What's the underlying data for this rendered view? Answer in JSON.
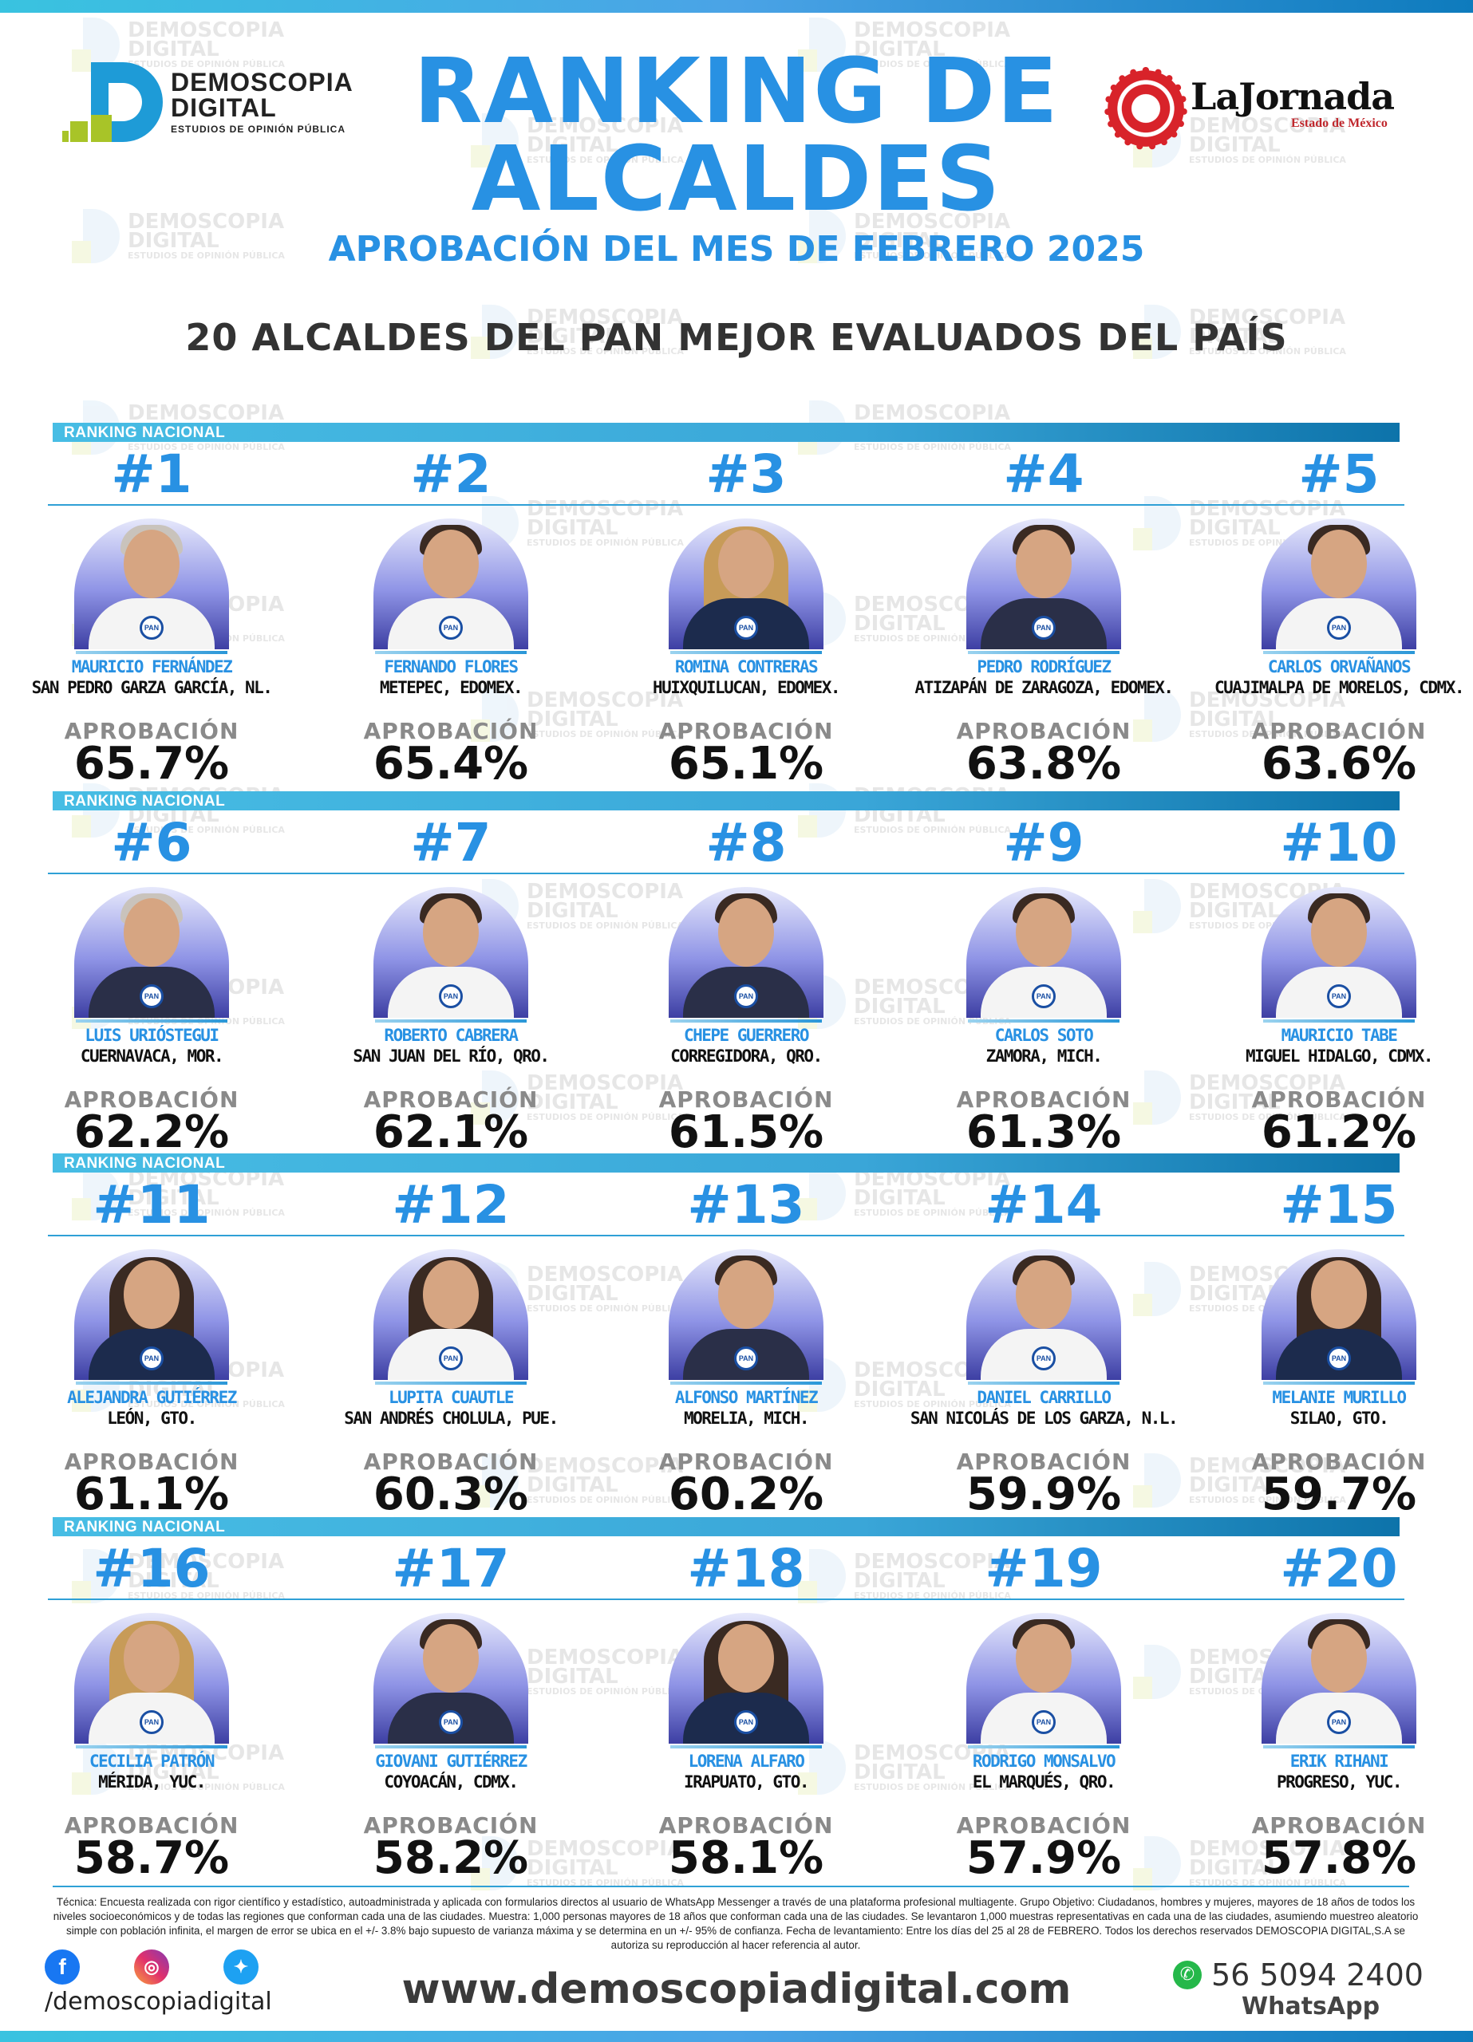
{
  "header": {
    "logo_left_name": "DEMOSCOPIA",
    "logo_left_name2": "DIGITAL",
    "logo_left_sub": "ESTUDIOS DE OPINIÓN PÚBLICA",
    "title_line1": "RANKING DE",
    "title_line2": "ALCALDES",
    "subtitle": "APROBACIÓN DEL MES DE FEBRERO 2025",
    "heading": "20 ALCALDES DEL PAN MEJOR EVALUADOS DEL PAÍS",
    "logo_right_name": "LaJornada",
    "logo_right_sub": "Estado de México"
  },
  "watermark": {
    "line1": "DEMOSCOPIA",
    "line2": "DIGITAL",
    "line3": "ESTUDIOS DE OPINIÓN PÚBLICA"
  },
  "ranking_label": "RANKING NACIONAL",
  "approval_label": "APROBACIÓN",
  "party_badge": "PAN",
  "mayors": [
    {
      "rank": "#1",
      "name": "MAURICIO FERNÁNDEZ",
      "city": "SAN PEDRO GARZA GARCÍA, NL.",
      "approval": "65.7%"
    },
    {
      "rank": "#2",
      "name": "FERNANDO FLORES",
      "city": "METEPEC, EDOMEX.",
      "approval": "65.4%"
    },
    {
      "rank": "#3",
      "name": "ROMINA CONTRERAS",
      "city": "HUIXQUILUCAN, EDOMEX.",
      "approval": "65.1%"
    },
    {
      "rank": "#4",
      "name": "PEDRO RODRÍGUEZ",
      "city": "ATIZAPÁN DE ZARAGOZA, EDOMEX.",
      "approval": "63.8%"
    },
    {
      "rank": "#5",
      "name": "CARLOS ORVAÑANOS",
      "city": "CUAJIMALPA DE MORELOS, CDMX.",
      "approval": "63.6%"
    },
    {
      "rank": "#6",
      "name": "LUIS URIÓSTEGUI",
      "city": "CUERNAVACA, MOR.",
      "approval": "62.2%"
    },
    {
      "rank": "#7",
      "name": "ROBERTO CABRERA",
      "city": "SAN JUAN DEL RÍO, QRO.",
      "approval": "62.1%"
    },
    {
      "rank": "#8",
      "name": "CHEPE GUERRERO",
      "city": "CORREGIDORA, QRO.",
      "approval": "61.5%"
    },
    {
      "rank": "#9",
      "name": "CARLOS SOTO",
      "city": "ZAMORA, MICH.",
      "approval": "61.3%"
    },
    {
      "rank": "#10",
      "name": "MAURICIO TABE",
      "city": "MIGUEL HIDALGO, CDMX.",
      "approval": "61.2%"
    },
    {
      "rank": "#11",
      "name": "ALEJANDRA GUTIÉRREZ",
      "city": "LEÓN, GTO.",
      "approval": "61.1%"
    },
    {
      "rank": "#12",
      "name": "LUPITA CUAUTLE",
      "city": "SAN ANDRÉS CHOLULA, PUE.",
      "approval": "60.3%"
    },
    {
      "rank": "#13",
      "name": "ALFONSO MARTÍNEZ",
      "city": "MORELIA, MICH.",
      "approval": "60.2%"
    },
    {
      "rank": "#14",
      "name": "DANIEL CARRILLO",
      "city": "SAN NICOLÁS DE LOS GARZA, N.L.",
      "approval": "59.9%"
    },
    {
      "rank": "#15",
      "name": "MELANIE MURILLO",
      "city": "SILAO, GTO.",
      "approval": "59.7%"
    },
    {
      "rank": "#16",
      "name": "CECILIA PATRÓN",
      "city": "MÉRIDA, YUC.",
      "approval": "58.7%"
    },
    {
      "rank": "#17",
      "name": "GIOVANI GUTIÉRREZ",
      "city": "COYOACÁN, CDMX.",
      "approval": "58.2%"
    },
    {
      "rank": "#18",
      "name": "LORENA ALFARO",
      "city": "IRAPUATO, GTO.",
      "approval": "58.1%"
    },
    {
      "rank": "#19",
      "name": "RODRIGO MONSALVO",
      "city": "EL MARQUÉS, QRO.",
      "approval": "57.9%"
    },
    {
      "rank": "#20",
      "name": "ERIK RIHANI",
      "city": "PROGRESO, YUC.",
      "approval": "57.8%"
    }
  ],
  "footer": {
    "technical_note": "Técnica: Encuesta realizada con rigor científico y estadístico, autoadministrada y aplicada con formularios directos al usuario de WhatsApp Messenger a través de una plataforma profesional multiagente. Grupo Objetivo: Ciudadanos, hombres y mujeres, mayores de 18 años de todos los niveles socioeconómicos y de todas las regiones que conforman cada una de las ciudades. Muestra: 1,000 personas mayores de 18 años que conforman cada una de las ciudades. Se levantaron 1,000 muestras representativas en cada una de las ciudades, asumiendo muestreo aleatorio simple con población infinita, el margen de error se ubica en el +/- 3.8% bajo supuesto de varianza máxima y se determina en un +/- 95% de confianza. Fecha de levantamiento: Entre los días del 25 al 28 de FEBRERO. Todos los derechos reservados DEMOSCOPIA DIGITAL,S.A se autoriza su reproducción al hacer referencia al autor.",
    "social_handle": "/demoscopiadigital",
    "website": "www.demoscopiadigital.com",
    "whatsapp_number": "56 5094 2400",
    "whatsapp_label": "WhatsApp"
  }
}
